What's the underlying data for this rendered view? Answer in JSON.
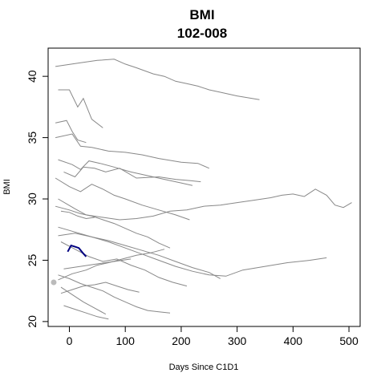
{
  "chart_data": {
    "type": "line",
    "title": "BMI",
    "subtitle": "102-008",
    "xlabel": "Days Since C1D1",
    "ylabel": "BMI",
    "xlim": [
      -38,
      520
    ],
    "ylim": [
      19.6,
      42.3
    ],
    "xticks": [
      0,
      100,
      200,
      300,
      400,
      500
    ],
    "yticks": [
      20,
      25,
      30,
      35,
      40
    ],
    "grid": false,
    "legend": "none",
    "colors": {
      "background": "#888888",
      "highlight": "#000080",
      "baseline_point": "#bbbbbb"
    },
    "highlight_series": {
      "x": [
        -3,
        3,
        10,
        17,
        24,
        30
      ],
      "y": [
        25.7,
        26.2,
        26.1,
        26.0,
        25.6,
        25.3
      ]
    },
    "baseline_point": {
      "x": -28,
      "y": 23.2
    },
    "background_series": [
      {
        "x": [
          -25,
          20,
          50,
          80,
          100,
          120,
          150,
          170,
          190,
          210,
          230,
          250,
          270,
          300,
          340
        ],
        "y": [
          40.8,
          41.1,
          41.3,
          41.4,
          41.0,
          40.7,
          40.2,
          40.0,
          39.6,
          39.4,
          39.2,
          38.9,
          38.7,
          38.4,
          38.1
        ]
      },
      {
        "x": [
          -20,
          0,
          15,
          25,
          40,
          60
        ],
        "y": [
          38.9,
          38.9,
          37.5,
          38.2,
          36.5,
          35.8
        ]
      },
      {
        "x": [
          -25,
          5,
          20,
          40,
          70,
          100,
          130,
          160,
          200,
          230,
          250
        ],
        "y": [
          35.0,
          35.3,
          34.3,
          34.2,
          33.9,
          33.8,
          33.6,
          33.3,
          33.0,
          32.9,
          32.5
        ]
      },
      {
        "x": [
          -25,
          -5,
          5,
          15,
          30
        ],
        "y": [
          36.2,
          36.4,
          35.5,
          34.8,
          34.6
        ]
      },
      {
        "x": [
          -20,
          5,
          20,
          35,
          55,
          80,
          110,
          140,
          170,
          200,
          220
        ],
        "y": [
          33.2,
          32.8,
          32.4,
          33.1,
          32.9,
          32.6,
          32.2,
          31.9,
          31.6,
          31.3,
          31.1
        ]
      },
      {
        "x": [
          -10,
          10,
          25,
          45,
          65,
          90,
          120,
          160,
          190,
          215,
          235
        ],
        "y": [
          32.2,
          31.8,
          32.6,
          32.5,
          32.2,
          32.5,
          31.7,
          31.8,
          31.6,
          31.5,
          31.4
        ]
      },
      {
        "x": [
          -25,
          0,
          20,
          40,
          60,
          80,
          100,
          130,
          160,
          190,
          215
        ],
        "y": [
          31.7,
          31.0,
          30.6,
          31.2,
          30.8,
          30.3,
          30.0,
          29.5,
          29.1,
          28.7,
          28.3
        ]
      },
      {
        "x": [
          -20,
          10,
          30,
          60,
          90,
          120,
          150,
          180,
          210,
          240,
          270,
          300,
          330,
          360,
          380,
          400,
          420,
          440,
          460,
          475,
          490,
          505
        ],
        "y": [
          30.0,
          29.2,
          28.7,
          28.5,
          28.3,
          28.4,
          28.6,
          29.0,
          29.1,
          29.4,
          29.5,
          29.7,
          29.9,
          30.1,
          30.3,
          30.4,
          30.2,
          30.8,
          30.3,
          29.5,
          29.3,
          29.7
        ]
      },
      {
        "x": [
          -25,
          0,
          20,
          40,
          60,
          80,
          100,
          120,
          140,
          160,
          180
        ],
        "y": [
          29.4,
          29.1,
          28.8,
          28.6,
          28.3,
          28.0,
          27.6,
          27.2,
          26.9,
          26.4,
          26.0
        ]
      },
      {
        "x": [
          -15,
          0,
          15,
          30,
          45
        ],
        "y": [
          29.0,
          28.9,
          28.6,
          28.4,
          28.5
        ]
      },
      {
        "x": [
          -20,
          10,
          40,
          70,
          100,
          130,
          160,
          190,
          220,
          250,
          280,
          310,
          350,
          390,
          430,
          460
        ],
        "y": [
          27.0,
          27.2,
          26.9,
          26.5,
          26.0,
          25.5,
          25.0,
          24.5,
          24.1,
          23.8,
          23.7,
          24.2,
          24.5,
          24.8,
          25.0,
          25.2
        ]
      },
      {
        "x": [
          -20,
          10,
          40,
          70,
          100,
          130,
          160,
          190,
          220,
          250,
          270
        ],
        "y": [
          27.7,
          27.3,
          26.9,
          26.6,
          26.2,
          25.8,
          25.4,
          24.9,
          24.4,
          24.0,
          23.5
        ]
      },
      {
        "x": [
          -15,
          10,
          35,
          60,
          85,
          110,
          135,
          160,
          185,
          210
        ],
        "y": [
          26.5,
          25.9,
          25.3,
          24.9,
          25.1,
          24.6,
          24.2,
          23.6,
          23.2,
          22.9
        ]
      },
      {
        "x": [
          -20,
          0,
          20,
          40,
          60,
          80,
          100,
          120,
          140,
          160,
          180
        ],
        "y": [
          23.8,
          23.5,
          23.1,
          22.8,
          22.5,
          22.0,
          21.6,
          21.2,
          20.9,
          20.8,
          20.7
        ]
      },
      {
        "x": [
          -15,
          5,
          25,
          45,
          65
        ],
        "y": [
          22.8,
          22.2,
          21.6,
          21.1,
          20.6
        ]
      },
      {
        "x": [
          -10,
          10,
          30,
          50,
          70
        ],
        "y": [
          21.3,
          21.0,
          20.7,
          20.4,
          20.2
        ]
      },
      {
        "x": [
          -15,
          5,
          25,
          45,
          65,
          85,
          105,
          125
        ],
        "y": [
          22.3,
          22.6,
          22.9,
          23.0,
          23.2,
          22.9,
          22.6,
          22.4
        ]
      },
      {
        "x": [
          -20,
          5,
          30,
          50,
          70,
          95,
          120,
          145,
          170
        ],
        "y": [
          23.4,
          23.9,
          24.2,
          24.6,
          24.8,
          25.1,
          25.4,
          25.6,
          25.9
        ]
      },
      {
        "x": [
          -10,
          20,
          50,
          80,
          110
        ],
        "y": [
          24.3,
          24.5,
          24.7,
          24.9,
          25.1
        ]
      }
    ]
  }
}
